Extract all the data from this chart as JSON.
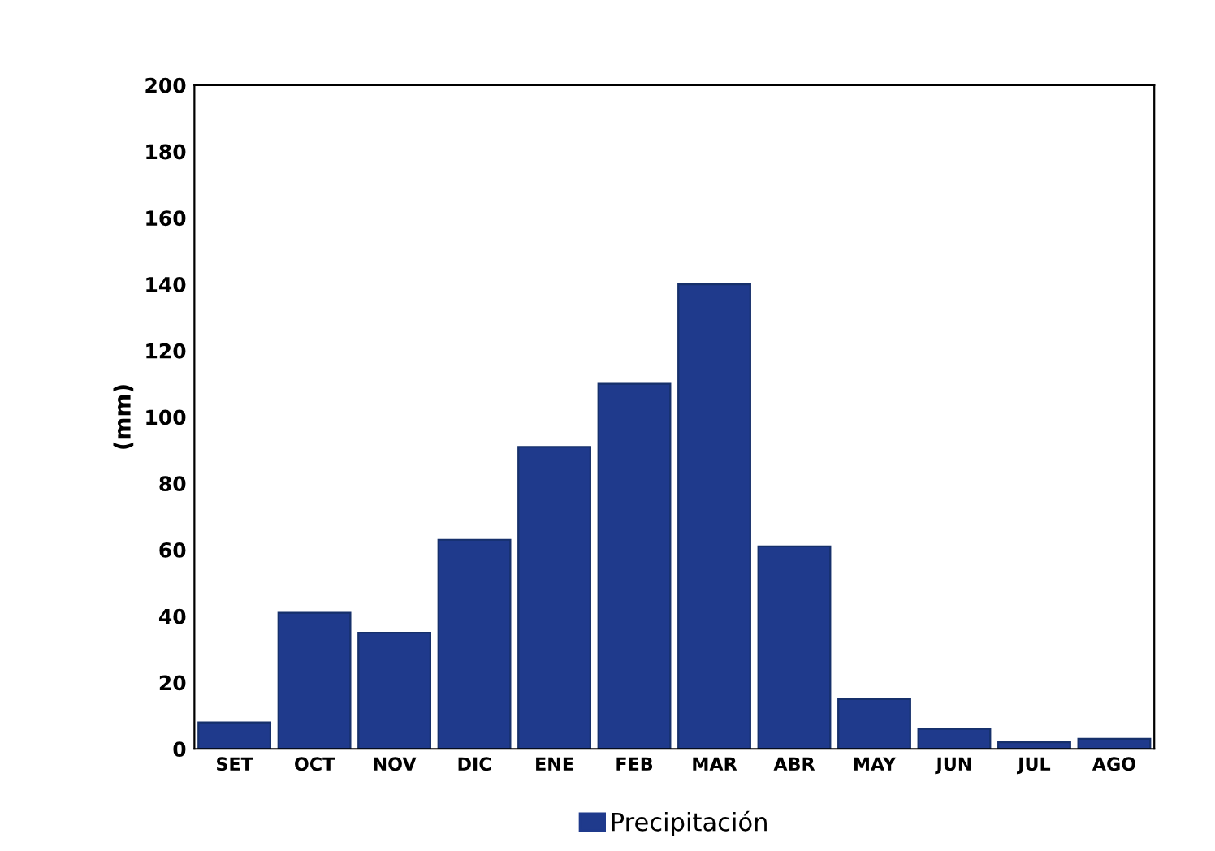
{
  "chart_data": {
    "type": "bar",
    "ylabel": "(mm)",
    "categories": [
      "SET",
      "OCT",
      "NOV",
      "DIC",
      "ENE",
      "FEB",
      "MAR",
      "ABR",
      "MAY",
      "JUN",
      "JUL",
      "AGO"
    ],
    "series": [
      {
        "name": "Precipitación",
        "color": "#1f3a8c",
        "values": [
          8,
          41,
          35,
          63,
          91,
          110,
          140,
          61,
          15,
          6,
          2,
          3
        ]
      }
    ],
    "ylim": [
      0,
      200
    ],
    "yticks": [
      0,
      20,
      40,
      60,
      80,
      100,
      120,
      140,
      160,
      180,
      200
    ],
    "grid": false,
    "legend": "bottom"
  }
}
